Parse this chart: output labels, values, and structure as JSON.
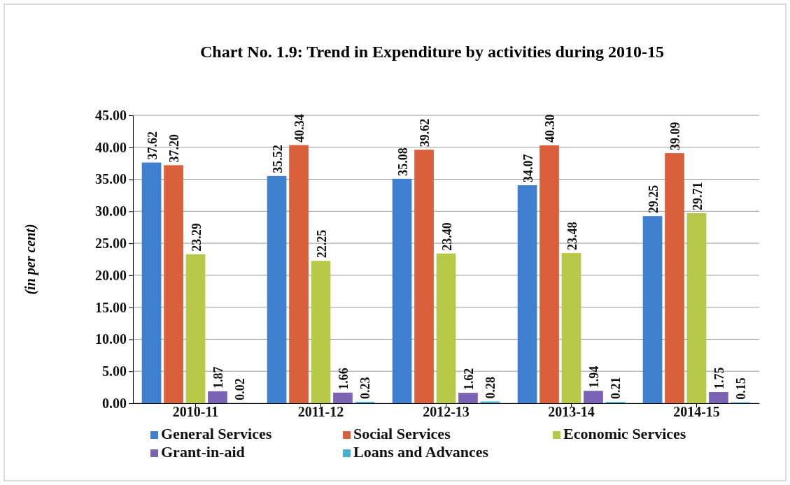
{
  "chart_data": {
    "type": "bar",
    "title": "Chart No. 1.9: Trend in Expenditure by activities during 2010-15",
    "ylabel": "(in per cent)",
    "categories": [
      "2010-11",
      "2011-12",
      "2012-13",
      "2013-14",
      "2014-15"
    ],
    "series": [
      {
        "name": "General Services",
        "color": "#3f7fd0",
        "values": [
          37.62,
          35.52,
          35.08,
          34.07,
          29.25
        ],
        "value_labels": [
          "37.62",
          "35.52",
          "35.08",
          "34.07",
          "29.25"
        ]
      },
      {
        "name": "Social Services",
        "color": "#d9603b",
        "values": [
          37.2,
          40.34,
          39.62,
          40.3,
          39.09
        ],
        "value_labels": [
          "37.20",
          "40.34",
          "39.62",
          "40.30",
          "39.09"
        ]
      },
      {
        "name": "Economic Services",
        "color": "#b8c94a",
        "values": [
          23.29,
          22.25,
          23.4,
          23.48,
          29.71
        ],
        "value_labels": [
          "23.29",
          "22.25",
          "23.40",
          "23.48",
          "29.71"
        ]
      },
      {
        "name": "Grant-in-aid",
        "color": "#7a62b5",
        "values": [
          1.87,
          1.66,
          1.62,
          1.94,
          1.75
        ],
        "value_labels": [
          "1.87",
          "1.66",
          "1.62",
          "1.94",
          "1.75"
        ]
      },
      {
        "name": "Loans and Advances",
        "color": "#4aaed0",
        "values": [
          0.02,
          0.23,
          0.28,
          0.21,
          0.15
        ],
        "value_labels": [
          "0.02",
          "0.23",
          "0.28",
          "0.21",
          "0.15"
        ]
      }
    ],
    "ylim": [
      0,
      45
    ],
    "yticks": [
      {
        "value": 0,
        "label": "0.00"
      },
      {
        "value": 5,
        "label": "5.00"
      },
      {
        "value": 10,
        "label": "10.00"
      },
      {
        "value": 15,
        "label": "15.00"
      },
      {
        "value": 20,
        "label": "20.00"
      },
      {
        "value": 25,
        "label": "25.00"
      },
      {
        "value": 30,
        "label": "30.00"
      },
      {
        "value": 35,
        "label": "35.00"
      },
      {
        "value": 40,
        "label": "40.00"
      },
      {
        "value": 45,
        "label": "45.00"
      }
    ],
    "grid": "y",
    "legend": "bottom"
  }
}
